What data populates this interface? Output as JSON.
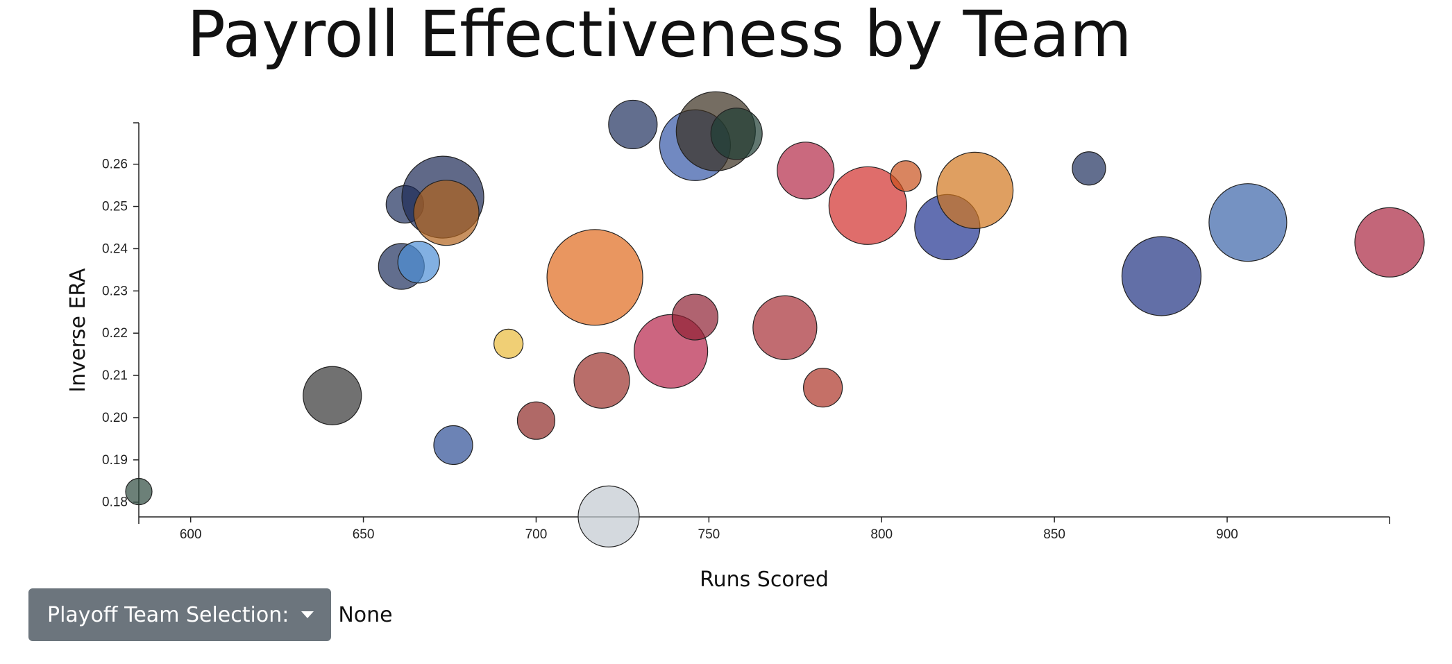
{
  "chart_data": {
    "type": "scatter",
    "title": "Payroll Effectiveness by Team",
    "xlabel": "Runs Scored",
    "ylabel": "Inverse ERA",
    "xlim": [
      585,
      947
    ],
    "ylim": [
      0.1765,
      0.2698
    ],
    "x_ticks": [
      600,
      650,
      700,
      750,
      800,
      850,
      900
    ],
    "y_ticks": [
      0.18,
      0.19,
      0.2,
      0.21,
      0.22,
      0.23,
      0.24,
      0.25,
      0.26
    ],
    "grid": false,
    "points": [
      {
        "x": 585,
        "y": 0.1825,
        "size": 19,
        "color": "#2e4a3e"
      },
      {
        "x": 641,
        "y": 0.2052,
        "size": 42,
        "color": "#353535"
      },
      {
        "x": 661,
        "y": 0.2358,
        "size": 33,
        "color": "#20315e"
      },
      {
        "x": 662,
        "y": 0.2505,
        "size": 27,
        "color": "#20315e"
      },
      {
        "x": 666,
        "y": 0.2368,
        "size": 30,
        "color": "#4d8fd6"
      },
      {
        "x": 673,
        "y": 0.2522,
        "size": 59,
        "color": "#1c2a55"
      },
      {
        "x": 674,
        "y": 0.2485,
        "size": 47,
        "color": "#b1621c"
      },
      {
        "x": 676,
        "y": 0.1935,
        "size": 28,
        "color": "#2e4f95"
      },
      {
        "x": 692,
        "y": 0.2175,
        "size": 21,
        "color": "#e9bb3a"
      },
      {
        "x": 700,
        "y": 0.1993,
        "size": 27,
        "color": "#8e2a27"
      },
      {
        "x": 717,
        "y": 0.2332,
        "size": 69,
        "color": "#df6a1c"
      },
      {
        "x": 719,
        "y": 0.2088,
        "size": 40,
        "color": "#9b302b"
      },
      {
        "x": 721,
        "y": 0.1766,
        "size": 44,
        "color": "#c2c9d0"
      },
      {
        "x": 728,
        "y": 0.2694,
        "size": 35,
        "color": "#20315e"
      },
      {
        "x": 739,
        "y": 0.2157,
        "size": 53,
        "color": "#b6234a"
      },
      {
        "x": 746,
        "y": 0.2238,
        "size": 33,
        "color": "#8e2133"
      },
      {
        "x": 746,
        "y": 0.2645,
        "size": 51,
        "color": "#3557a6"
      },
      {
        "x": 752,
        "y": 0.2678,
        "size": 57,
        "color": "#3b2f20"
      },
      {
        "x": 758,
        "y": 0.2672,
        "size": 37,
        "color": "#1e3d33"
      },
      {
        "x": 772,
        "y": 0.2213,
        "size": 46,
        "color": "#a72d35"
      },
      {
        "x": 778,
        "y": 0.2585,
        "size": 41,
        "color": "#b42a47"
      },
      {
        "x": 783,
        "y": 0.2071,
        "size": 28,
        "color": "#ad3327"
      },
      {
        "x": 796,
        "y": 0.2502,
        "size": 56,
        "color": "#d12f2c"
      },
      {
        "x": 807,
        "y": 0.2572,
        "size": 22,
        "color": "#c9511d"
      },
      {
        "x": 819,
        "y": 0.2451,
        "size": 47,
        "color": "#1f3290"
      },
      {
        "x": 827,
        "y": 0.2538,
        "size": 55,
        "color": "#d1761e"
      },
      {
        "x": 860,
        "y": 0.259,
        "size": 24,
        "color": "#20315e"
      },
      {
        "x": 881,
        "y": 0.2335,
        "size": 57,
        "color": "#1f3282"
      },
      {
        "x": 906,
        "y": 0.2462,
        "size": 56,
        "color": "#3a64a8"
      },
      {
        "x": 947,
        "y": 0.2415,
        "size": 50,
        "color": "#aa2540"
      }
    ]
  },
  "controls": {
    "dropdown_label": "Playoff Team Selection:",
    "selection_value": "None"
  },
  "colors": {
    "dropdown_bg": "#6c757d",
    "bubble_stroke": "#222222"
  }
}
